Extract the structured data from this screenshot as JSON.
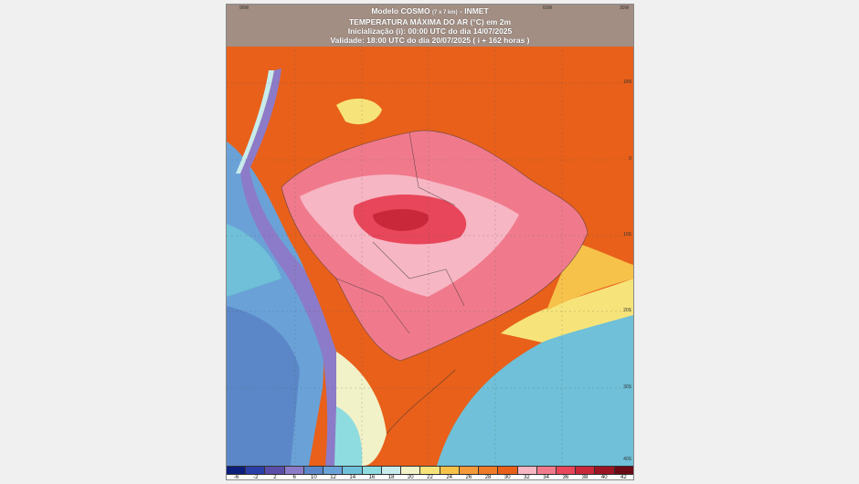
{
  "header": {
    "line1_model": "Modelo COSMO",
    "line1_resolution": "(7 x 7 km)",
    "line1_source": "- INMET",
    "line2": "TEMPERATURA MÁXIMA DO AR (°C) em 2m",
    "line3": "Inicialização (i): 00:00 UTC do dia 14/07/2025",
    "line4": "Validade: 18:00 UTC do dia 20/07/2025 ( i + 162 horas )"
  },
  "longitude_labels": [
    "90W",
    "60W",
    "30W"
  ],
  "latitude_labels": [
    "10N",
    "0",
    "10S",
    "20S",
    "30S",
    "40S"
  ],
  "colorbar": {
    "labels": [
      "-6",
      "-2",
      "2",
      "6",
      "10",
      "12",
      "14",
      "16",
      "18",
      "20",
      "22",
      "24",
      "26",
      "28",
      "30",
      "32",
      "34",
      "36",
      "38",
      "40",
      "42"
    ],
    "colors": [
      "#0b1f7a",
      "#2b3fa8",
      "#5a4ea8",
      "#8c7bc8",
      "#5b87c8",
      "#6aa2d8",
      "#6fc0d8",
      "#8fdce0",
      "#c8ecec",
      "#f2f2c8",
      "#f6e47a",
      "#f6c24a",
      "#f59a3a",
      "#ef7a28",
      "#e8601a",
      "#f7b6c4",
      "#f07a8c",
      "#e8465a",
      "#c8283a",
      "#9a1424",
      "#6a0a16"
    ]
  }
}
